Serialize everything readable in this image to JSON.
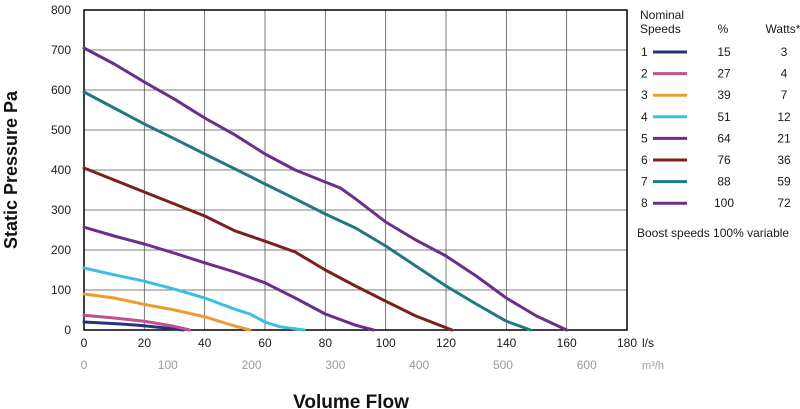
{
  "chart_data": {
    "type": "line",
    "xlabel": "Volume Flow",
    "ylabel": "Static Pressure Pa",
    "x_unit": "l/s",
    "x_unit_secondary": "m³/h",
    "xlim": [
      0,
      180
    ],
    "ylim": [
      0,
      800
    ],
    "x_ticks": [
      0,
      20,
      40,
      60,
      80,
      100,
      120,
      140,
      160,
      180
    ],
    "y_ticks": [
      0,
      100,
      200,
      300,
      400,
      500,
      600,
      700,
      800
    ],
    "secondary_x_ticks": [
      0,
      100,
      200,
      300,
      400,
      500,
      600
    ],
    "grid": true,
    "legend": {
      "position": "right",
      "header_speeds": [
        "Nominal",
        "Speeds"
      ],
      "header_percent": "%",
      "header_watts": "Watts*",
      "footnote": "Boost speeds 100% variable"
    },
    "series": [
      {
        "name": "1",
        "percent": "15",
        "watts": "3",
        "color": "#26337a",
        "x": [
          0,
          10,
          18,
          26,
          33
        ],
        "y": [
          20,
          16,
          12,
          6,
          0
        ]
      },
      {
        "name": "2",
        "percent": "27",
        "watts": "4",
        "color": "#c0508a",
        "x": [
          0,
          10,
          20,
          30,
          35
        ],
        "y": [
          37,
          30,
          22,
          9,
          0
        ]
      },
      {
        "name": "3",
        "percent": "39",
        "watts": "7",
        "color": "#ee9a30",
        "x": [
          0,
          10,
          20,
          30,
          40,
          50,
          55
        ],
        "y": [
          90,
          80,
          64,
          50,
          33,
          10,
          0
        ]
      },
      {
        "name": "4",
        "percent": "51",
        "watts": "12",
        "color": "#3bbde5",
        "x": [
          0,
          10,
          20,
          30,
          40,
          50,
          55,
          60,
          65,
          73
        ],
        "y": [
          155,
          138,
          122,
          102,
          80,
          52,
          40,
          20,
          8,
          0
        ]
      },
      {
        "name": "5",
        "percent": "64",
        "watts": "21",
        "color": "#6b2e8c",
        "x": [
          0,
          10,
          20,
          30,
          40,
          50,
          60,
          70,
          80,
          90,
          96
        ],
        "y": [
          257,
          235,
          215,
          192,
          168,
          145,
          118,
          80,
          40,
          12,
          0
        ]
      },
      {
        "name": "6",
        "percent": "76",
        "watts": "36",
        "color": "#7d1f1f",
        "x": [
          0,
          10,
          20,
          30,
          40,
          50,
          60,
          70,
          80,
          90,
          100,
          110,
          122
        ],
        "y": [
          405,
          375,
          345,
          315,
          285,
          248,
          222,
          195,
          150,
          110,
          72,
          35,
          0
        ]
      },
      {
        "name": "7",
        "percent": "88",
        "watts": "59",
        "color": "#1e7b7b",
        "x": [
          0,
          10,
          20,
          30,
          40,
          50,
          60,
          70,
          80,
          90,
          100,
          110,
          120,
          130,
          140,
          148
        ],
        "y": [
          595,
          555,
          515,
          478,
          440,
          403,
          365,
          328,
          290,
          255,
          210,
          160,
          110,
          65,
          22,
          0
        ]
      },
      {
        "name": "8",
        "percent": "100",
        "watts": "72",
        "color": "#6b2e8c",
        "x": [
          0,
          10,
          20,
          30,
          40,
          50,
          60,
          70,
          80,
          85,
          90,
          100,
          110,
          120,
          130,
          140,
          150,
          160
        ],
        "y": [
          705,
          665,
          620,
          577,
          530,
          488,
          440,
          400,
          370,
          355,
          328,
          270,
          225,
          185,
          135,
          80,
          35,
          0
        ]
      }
    ]
  }
}
